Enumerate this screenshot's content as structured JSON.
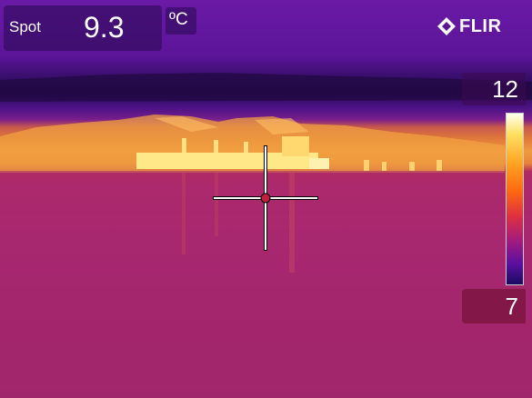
{
  "spot": {
    "label": "Spot",
    "value": "9.3",
    "unit": "ºC"
  },
  "brand": {
    "logo_text": "FLIR",
    "logo_icon": "flir-diamond-icon"
  },
  "scale": {
    "max": "12",
    "min": "7"
  },
  "overlay_icons": {
    "crosshair": "crosshair-icon"
  }
}
